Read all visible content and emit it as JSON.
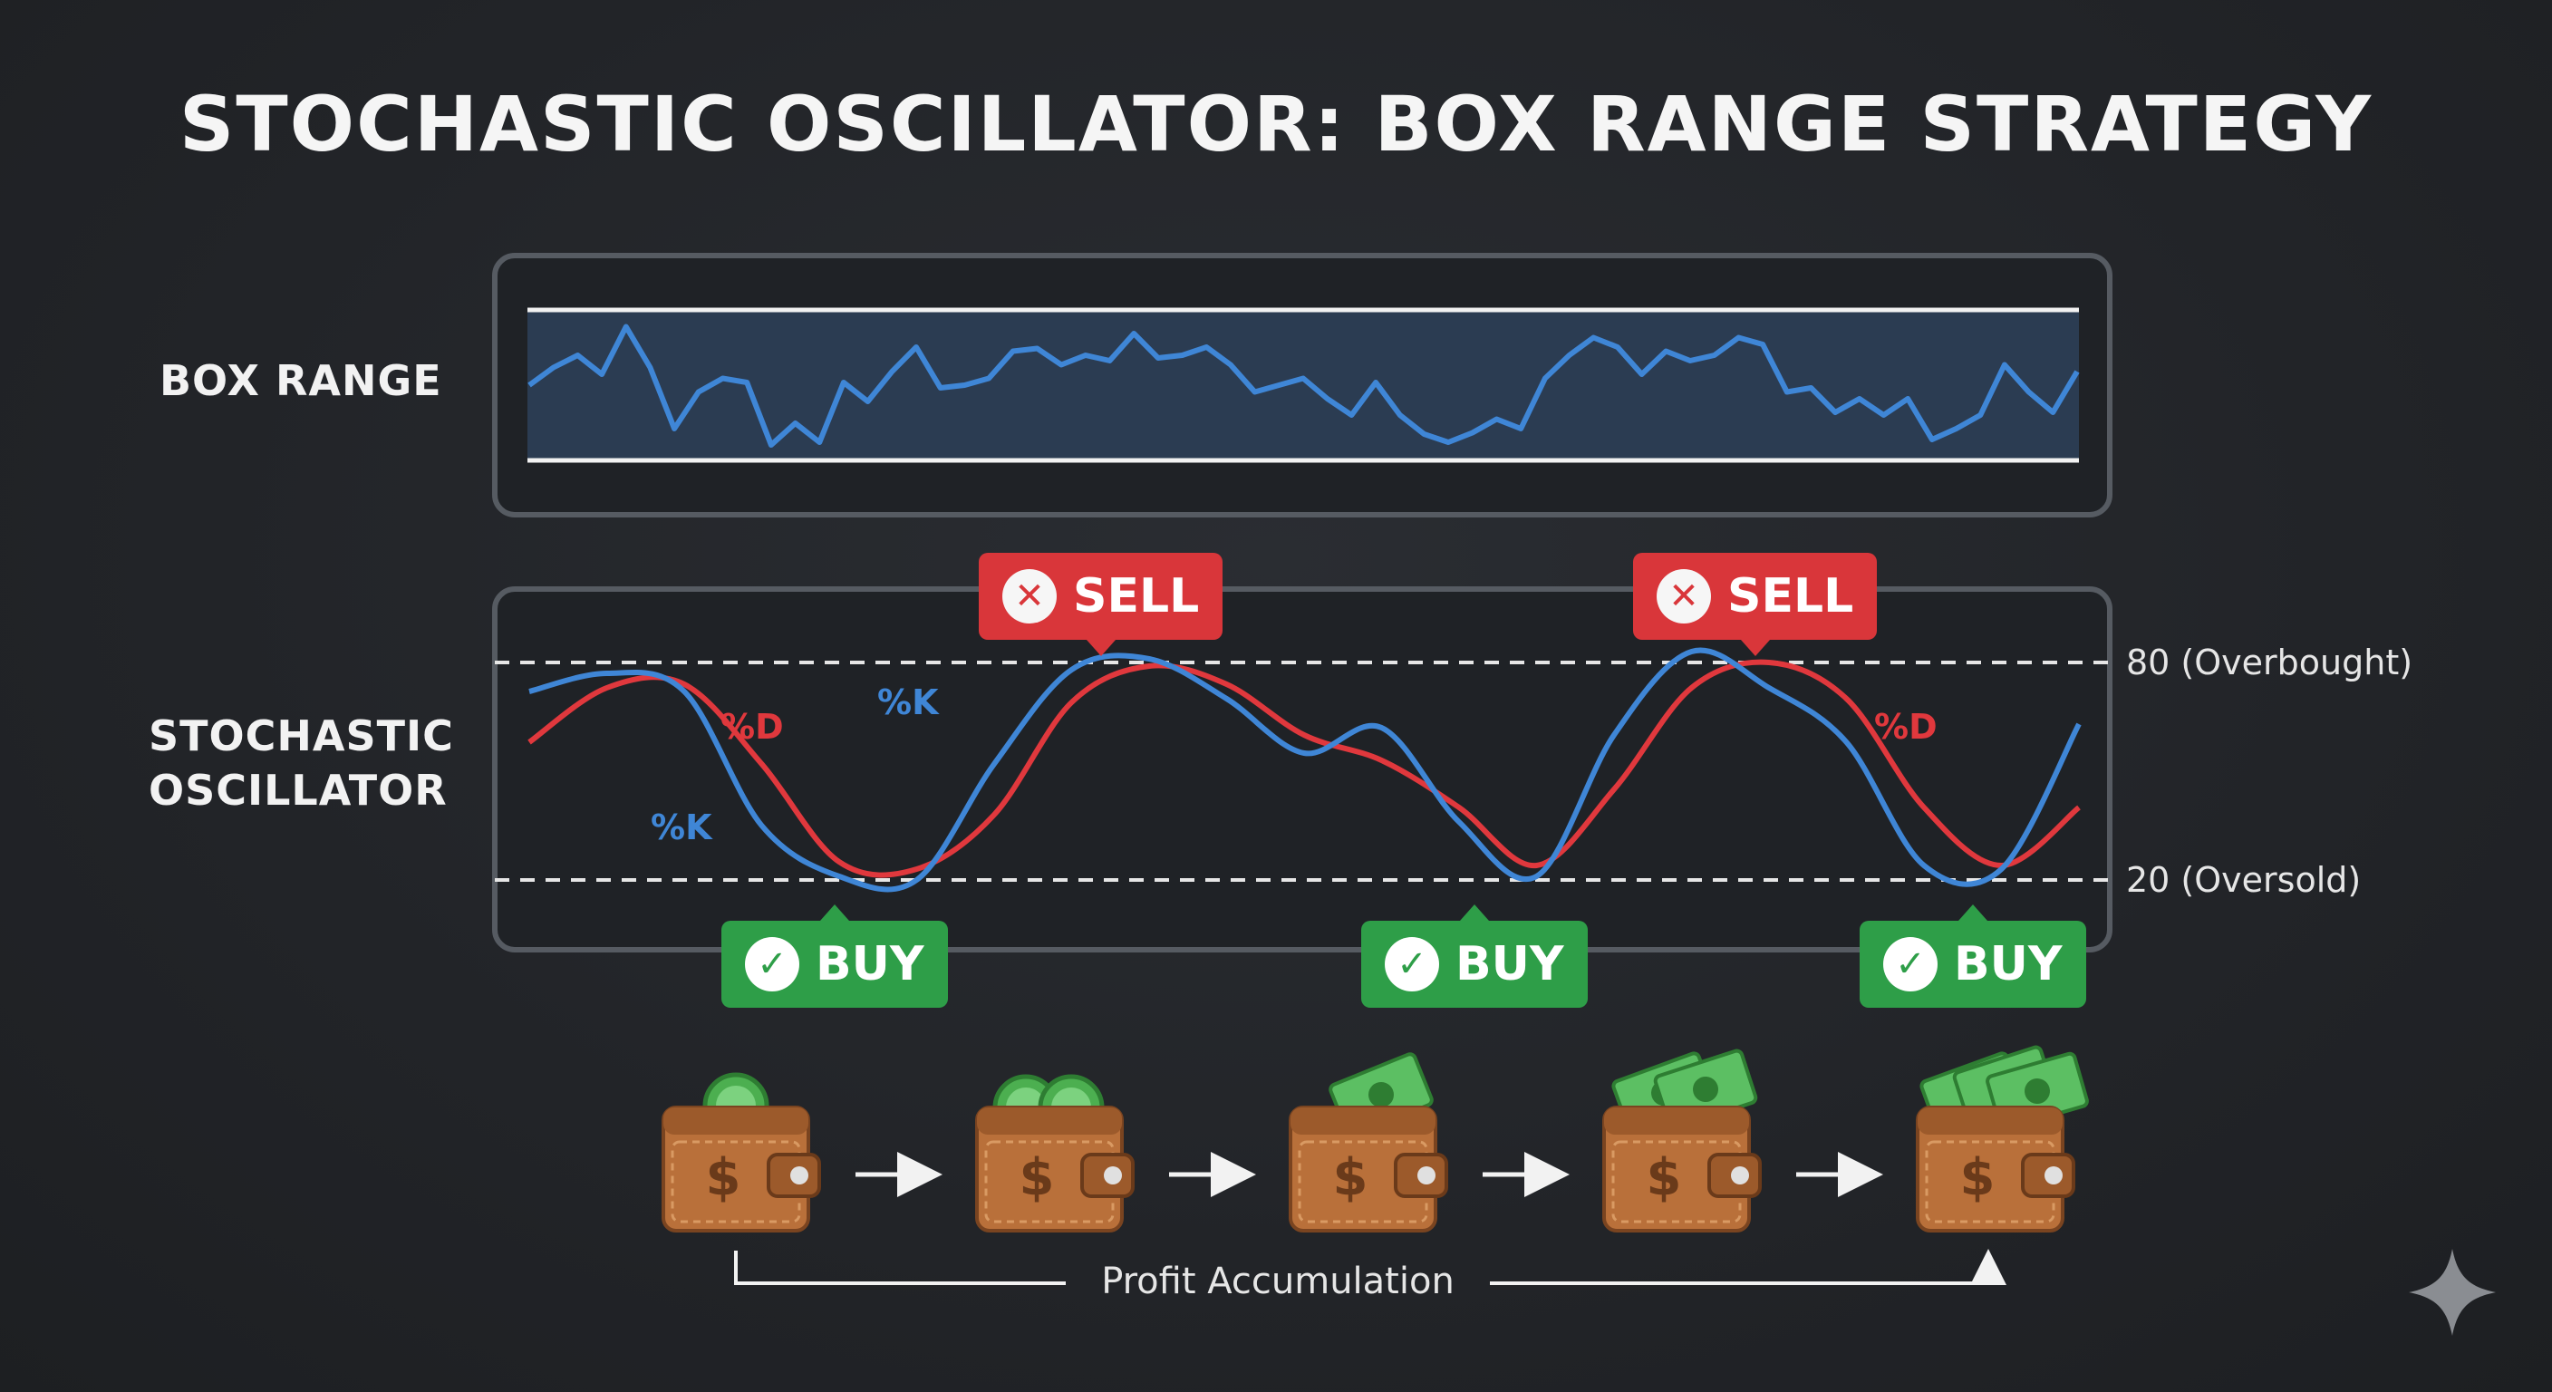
{
  "title": "STOCHASTIC OSCILLATOR: BOX RANGE STRATEGY",
  "rows": {
    "box_range": "BOX RANGE",
    "oscillator_line1": "STOCHASTIC",
    "oscillator_line2": "OSCILLATOR"
  },
  "levels": {
    "overbought": "80 (Overbought)",
    "oversold": "20 (Oversold)"
  },
  "signals": {
    "sell": [
      {
        "label": "SELL",
        "icon": "x-icon"
      },
      {
        "label": "SELL",
        "icon": "x-icon"
      }
    ],
    "buy": [
      {
        "label": "BUY",
        "icon": "check-icon"
      },
      {
        "label": "BUY",
        "icon": "check-icon"
      },
      {
        "label": "BUY",
        "icon": "check-icon"
      }
    ]
  },
  "series_labels": {
    "k": "%K",
    "d": "%D"
  },
  "flow": {
    "label": "Profit Accumulation",
    "stages": [
      "one-coin",
      "two-coins",
      "one-bill",
      "two-bills",
      "three-bills"
    ]
  },
  "colors": {
    "k_line": "#3f86d6",
    "d_line": "#e0383d",
    "sell": "#d9363a",
    "buy": "#2e9e48",
    "wallet": "#b9703a"
  },
  "chart_data": [
    {
      "type": "line",
      "title": "BOX RANGE",
      "series": [
        {
          "name": "price",
          "values": [
            50,
            63,
            72,
            58,
            93,
            63,
            18,
            45,
            55,
            52,
            6,
            22,
            8,
            52,
            38,
            60,
            78,
            48,
            50,
            55,
            75,
            77,
            65,
            72,
            68,
            88,
            70,
            72,
            78,
            65,
            45,
            50,
            55,
            40,
            28,
            52,
            28,
            14,
            8,
            15,
            25,
            18,
            55,
            72,
            85,
            78,
            58,
            75,
            68,
            72,
            85,
            80,
            45,
            48,
            30,
            40,
            28,
            40,
            10,
            18,
            28,
            65,
            45,
            30,
            60
          ]
        }
      ],
      "ylim": [
        0,
        100
      ]
    },
    {
      "type": "line",
      "title": "STOCHASTIC OSCILLATOR",
      "x": [
        0,
        5,
        10,
        15,
        20,
        25,
        30,
        35,
        40,
        45,
        50,
        55,
        60,
        65,
        70,
        75,
        80,
        85,
        90,
        95,
        100
      ],
      "series": [
        {
          "name": "%K",
          "values": [
            72,
            77,
            72,
            35,
            21,
            20,
            52,
            78,
            81,
            70,
            55,
            62,
            36,
            21,
            60,
            83,
            73,
            58,
            24,
            23,
            63
          ]
        },
        {
          "name": "%D",
          "values": [
            58,
            73,
            74,
            52,
            25,
            23,
            38,
            69,
            79,
            74,
            60,
            53,
            40,
            24,
            45,
            73,
            80,
            70,
            40,
            24,
            40
          ]
        }
      ],
      "levels": [
        80,
        20
      ],
      "ylim": [
        10,
        90
      ]
    }
  ]
}
